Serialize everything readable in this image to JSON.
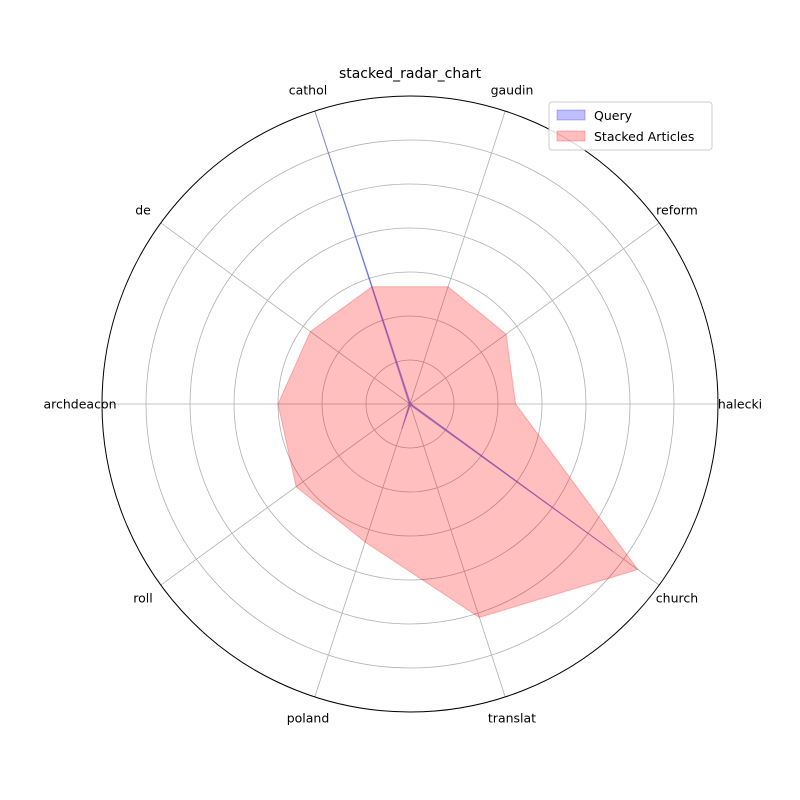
{
  "chart_data": {
    "type": "radar",
    "title": "stacked_radar_chart",
    "categories": [
      "halecki",
      "reform",
      "gaudin",
      "cathol",
      "de",
      "archdeacon",
      "roll",
      "poland",
      "translat",
      "church"
    ],
    "rmax": 7,
    "series": [
      {
        "name": "Query",
        "color": "#0000ff",
        "values": [
          0.03,
          0.03,
          0.03,
          7.0,
          0.03,
          0.03,
          0.03,
          0.6,
          0.03,
          5.7
        ]
      },
      {
        "name": "Stacked Articles",
        "color": "#ff0000",
        "values": [
          2.4,
          2.7,
          2.8,
          2.8,
          2.8,
          3.0,
          3.2,
          3.3,
          5.1,
          6.4
        ]
      }
    ],
    "legend_position": "top-right",
    "grid": true
  }
}
